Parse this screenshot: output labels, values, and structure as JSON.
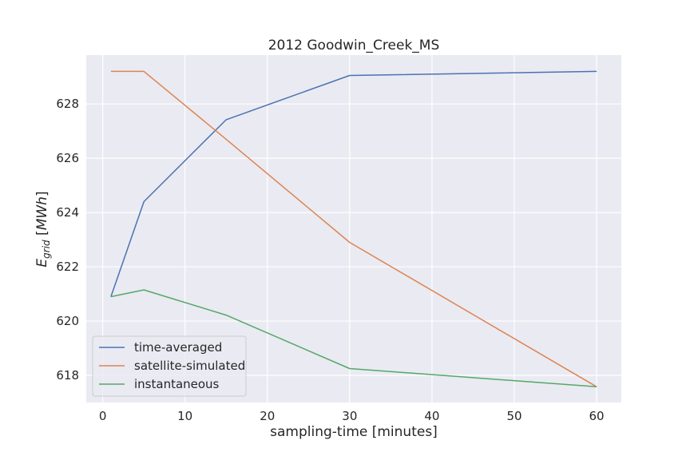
{
  "chart_data": {
    "type": "line",
    "title": "2012 Goodwin_Creek_MS",
    "xlabel": "sampling-time [minutes]",
    "ylabel_main": "E",
    "ylabel_sub": "grid",
    "ylabel_unit": "MWh",
    "xlim": [
      -2,
      63
    ],
    "ylim": [
      617.0,
      629.8
    ],
    "xticks": [
      0,
      10,
      20,
      30,
      40,
      50,
      60
    ],
    "yticks": [
      618,
      620,
      622,
      624,
      626,
      628
    ],
    "grid": true,
    "legend_position": "lower-left",
    "x": [
      1,
      5,
      15,
      30,
      60
    ],
    "series": [
      {
        "name": "time-averaged",
        "color": "#4c72b0",
        "values": [
          620.9,
          624.4,
          627.42,
          629.05,
          629.2
        ]
      },
      {
        "name": "satellite-simulated",
        "color": "#dd8452",
        "values": [
          629.2,
          629.2,
          626.7,
          622.9,
          617.58
        ]
      },
      {
        "name": "instantaneous",
        "color": "#55a868",
        "values": [
          620.9,
          621.15,
          620.22,
          618.25,
          617.58
        ]
      }
    ]
  }
}
